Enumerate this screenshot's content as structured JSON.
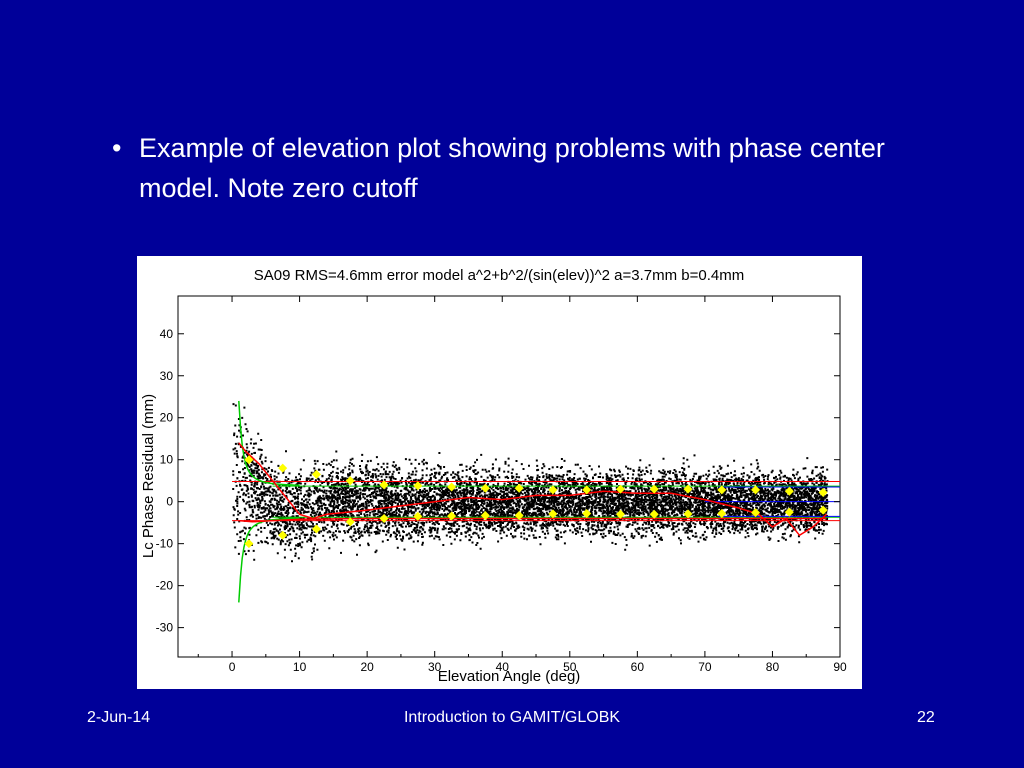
{
  "slide": {
    "bullet": "Example of elevation plot showing problems with phase center model. Note zero cutoff",
    "bullet_symbol": "•"
  },
  "footer": {
    "date": "2-Jun-14",
    "title": "Introduction to GAMIT/GLOBK",
    "page": "22"
  },
  "colors": {
    "background": "#000099",
    "scatter": "#000000",
    "mean_line": "#ff0000",
    "error_model": "#00cc00",
    "bin_markers": "#ffff00",
    "blue_line": "#0000ff"
  },
  "chart_data": {
    "type": "scatter",
    "title": "SA09 RMS=4.6mm error model a^2+b^2/(sin(elev))^2 a=3.7mm b=0.4mm",
    "xlabel": "Elevation Angle (deg)",
    "ylabel": "Lc Phase Residual (mm)",
    "xlim": [
      -8,
      90
    ],
    "ylim": [
      -37,
      49
    ],
    "xticks": [
      0,
      10,
      20,
      30,
      40,
      50,
      60,
      70,
      80,
      90
    ],
    "yticks": [
      -30,
      -20,
      -10,
      0,
      10,
      20,
      30,
      40
    ],
    "grid": false,
    "series": [
      {
        "kind": "binned_rms_markers",
        "x": [
          2.5,
          7.5,
          12.5,
          17.5,
          22.5,
          27.5,
          32.5,
          37.5,
          42.5,
          47.5,
          52.5,
          57.5,
          62.5,
          67.5,
          72.5,
          77.5,
          82.5,
          87.5
        ],
        "y_upper": [
          10,
          8,
          6.5,
          5,
          4,
          3.8,
          3.5,
          3.2,
          3.2,
          2.8,
          2.8,
          3.0,
          3.0,
          3.0,
          2.8,
          2.8,
          2.5,
          2.2
        ],
        "y_lower": [
          -10,
          -8,
          -6.5,
          -4.8,
          -4,
          -3.5,
          -3.4,
          -3.3,
          -3.3,
          -2.9,
          -2.8,
          -3.0,
          -3.0,
          -2.9,
          -2.8,
          -2.6,
          -2.5,
          -2.0
        ]
      },
      {
        "kind": "mean_residual_line",
        "x": [
          1,
          2,
          4,
          6,
          8,
          10,
          12,
          14,
          17,
          20,
          25,
          30,
          35,
          40,
          45,
          50,
          55,
          60,
          65,
          70,
          75,
          78,
          80,
          82,
          84,
          86,
          88
        ],
        "y": [
          14,
          12,
          9,
          5,
          1,
          -3,
          -4,
          -3,
          -2.5,
          -2,
          -1,
          0,
          1,
          0.5,
          1.5,
          1.5,
          2.5,
          2,
          2,
          0.5,
          -1.5,
          -3,
          -6,
          -4,
          -8,
          -6,
          -3
        ]
      },
      {
        "kind": "mean_residual_line_lower",
        "x": [
          1,
          3,
          6,
          10,
          20,
          40,
          60,
          80,
          88
        ],
        "y": [
          -4.5,
          -4.8,
          -4.5,
          -4.2,
          -4.0,
          -4.0,
          -4.0,
          -4.0,
          -4.0
        ]
      },
      {
        "kind": "error_model_envelope",
        "a_mm": 3.7,
        "b_mm": 0.4
      }
    ],
    "scatter_description_counts": {
      "peak_spread_at_low_elevation_mm": 45
    }
  }
}
